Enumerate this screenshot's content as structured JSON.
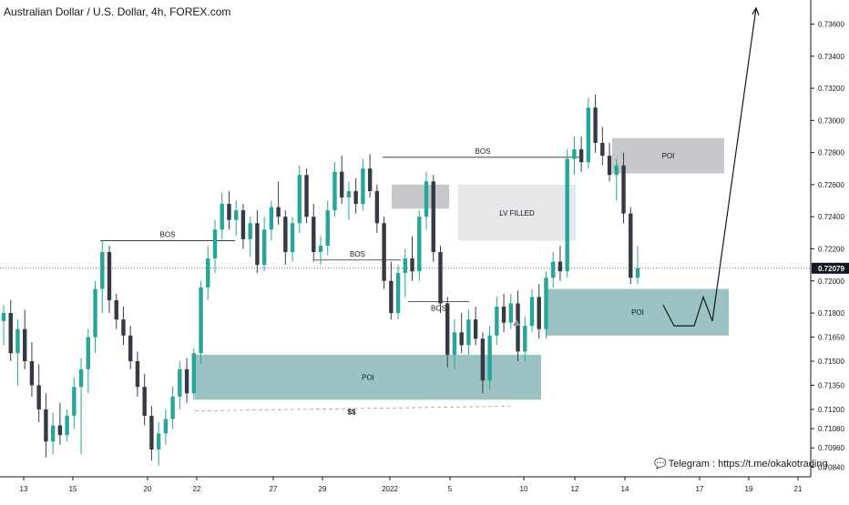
{
  "header": {
    "title": "Australian Dollar / U.S. Dollar, 4h, FOREX.com"
  },
  "footer": {
    "telegram": "Telegram : https://t.me/okakotrading"
  },
  "colors": {
    "up": "#26a69a",
    "down": "#363a45",
    "poi_fill": "#9cc3c3",
    "gray_zone": "#c7c8cb",
    "lv_zone": "#e6e7e9",
    "line": "#000000",
    "price_badge": "#131722"
  },
  "chart_data": {
    "type": "candlestick",
    "symbol": "AUDUSD",
    "timeframe": "4h",
    "ylim": [
      0.7078,
      0.7375
    ],
    "y_ticks": [
      "0.73600",
      "0.73400",
      "0.73200",
      "0.73000",
      "0.72800",
      "0.72600",
      "0.72400",
      "0.72200",
      "0.72000",
      "0.71800",
      "0.71650",
      "0.71500",
      "0.71350",
      "0.71200",
      "0.71080",
      "0.70960",
      "0.70840"
    ],
    "x_ticks": [
      "13",
      "15",
      "20",
      "22",
      "27",
      "29",
      "2022",
      "5",
      "10",
      "12",
      "14",
      "17",
      "19",
      "21"
    ],
    "last_price": "0.72079",
    "annotations": [
      {
        "type": "zone",
        "label": "POI",
        "from": "22",
        "to": "11",
        "top": 0.7154,
        "bottom": 0.7126
      },
      {
        "type": "zone",
        "label": "POI",
        "from": "11",
        "to": "18",
        "top": 0.7195,
        "bottom": 0.7166
      },
      {
        "type": "zone",
        "label": "",
        "from": "2022",
        "to": "5",
        "top": 0.726,
        "bottom": 0.7245
      },
      {
        "type": "zone",
        "label": "LV FILLED",
        "from": "5",
        "to": "12",
        "top": 0.726,
        "bottom": 0.7225
      },
      {
        "type": "zone",
        "label": "POI",
        "from": "13",
        "to": "18",
        "top": 0.7289,
        "bottom": 0.7267
      },
      {
        "type": "level",
        "label": "BOS",
        "price": 0.7225
      },
      {
        "type": "level",
        "label": "BOS",
        "price": 0.7277
      },
      {
        "type": "level",
        "label": "BOS",
        "price": 0.7213
      },
      {
        "type": "level",
        "label": "BOS",
        "price": 0.7187
      },
      {
        "type": "trendline",
        "label": "$$",
        "from_price": 0.7119,
        "to_price": 0.7122
      }
    ],
    "candles": [
      {
        "o": 0.7175,
        "h": 0.7185,
        "l": 0.716,
        "c": 0.718
      },
      {
        "o": 0.718,
        "h": 0.7188,
        "l": 0.715,
        "c": 0.7155
      },
      {
        "o": 0.7155,
        "h": 0.7176,
        "l": 0.7135,
        "c": 0.717
      },
      {
        "o": 0.717,
        "h": 0.7182,
        "l": 0.7145,
        "c": 0.715
      },
      {
        "o": 0.715,
        "h": 0.7162,
        "l": 0.7128,
        "c": 0.7135
      },
      {
        "o": 0.7135,
        "h": 0.7148,
        "l": 0.7112,
        "c": 0.712
      },
      {
        "o": 0.712,
        "h": 0.713,
        "l": 0.709,
        "c": 0.71
      },
      {
        "o": 0.71,
        "h": 0.7118,
        "l": 0.7092,
        "c": 0.711
      },
      {
        "o": 0.711,
        "h": 0.7124,
        "l": 0.7098,
        "c": 0.7104
      },
      {
        "o": 0.7104,
        "h": 0.712,
        "l": 0.71,
        "c": 0.7116
      },
      {
        "o": 0.7116,
        "h": 0.714,
        "l": 0.7108,
        "c": 0.7134
      },
      {
        "o": 0.7134,
        "h": 0.7152,
        "l": 0.7092,
        "c": 0.7145
      },
      {
        "o": 0.7145,
        "h": 0.717,
        "l": 0.713,
        "c": 0.7165
      },
      {
        "o": 0.7165,
        "h": 0.72,
        "l": 0.7155,
        "c": 0.7195
      },
      {
        "o": 0.7195,
        "h": 0.7225,
        "l": 0.718,
        "c": 0.7218
      },
      {
        "o": 0.7218,
        "h": 0.7222,
        "l": 0.718,
        "c": 0.7188
      },
      {
        "o": 0.7188,
        "h": 0.7192,
        "l": 0.717,
        "c": 0.7176
      },
      {
        "o": 0.7176,
        "h": 0.7184,
        "l": 0.716,
        "c": 0.7166
      },
      {
        "o": 0.7166,
        "h": 0.7172,
        "l": 0.7145,
        "c": 0.715
      },
      {
        "o": 0.715,
        "h": 0.7156,
        "l": 0.7128,
        "c": 0.7134
      },
      {
        "o": 0.7134,
        "h": 0.7142,
        "l": 0.711,
        "c": 0.7116
      },
      {
        "o": 0.7116,
        "h": 0.7122,
        "l": 0.7088,
        "c": 0.7095
      },
      {
        "o": 0.7095,
        "h": 0.7112,
        "l": 0.7085,
        "c": 0.7105
      },
      {
        "o": 0.7105,
        "h": 0.712,
        "l": 0.7098,
        "c": 0.7114
      },
      {
        "o": 0.7114,
        "h": 0.7134,
        "l": 0.7108,
        "c": 0.7128
      },
      {
        "o": 0.7128,
        "h": 0.715,
        "l": 0.712,
        "c": 0.7145
      },
      {
        "o": 0.7145,
        "h": 0.7152,
        "l": 0.7124,
        "c": 0.713
      },
      {
        "o": 0.713,
        "h": 0.7158,
        "l": 0.7126,
        "c": 0.7155
      },
      {
        "o": 0.7155,
        "h": 0.72,
        "l": 0.7148,
        "c": 0.7196
      },
      {
        "o": 0.7196,
        "h": 0.7222,
        "l": 0.7188,
        "c": 0.7214
      },
      {
        "o": 0.7214,
        "h": 0.7238,
        "l": 0.7205,
        "c": 0.7232
      },
      {
        "o": 0.7232,
        "h": 0.7255,
        "l": 0.7226,
        "c": 0.7248
      },
      {
        "o": 0.7248,
        "h": 0.7256,
        "l": 0.7232,
        "c": 0.7238
      },
      {
        "o": 0.7238,
        "h": 0.725,
        "l": 0.7228,
        "c": 0.7244
      },
      {
        "o": 0.7244,
        "h": 0.7248,
        "l": 0.722,
        "c": 0.7226
      },
      {
        "o": 0.7226,
        "h": 0.724,
        "l": 0.7215,
        "c": 0.7236
      },
      {
        "o": 0.7236,
        "h": 0.7244,
        "l": 0.7205,
        "c": 0.721
      },
      {
        "o": 0.721,
        "h": 0.724,
        "l": 0.7206,
        "c": 0.7232
      },
      {
        "o": 0.7232,
        "h": 0.725,
        "l": 0.7225,
        "c": 0.7246
      },
      {
        "o": 0.7246,
        "h": 0.7262,
        "l": 0.7235,
        "c": 0.724
      },
      {
        "o": 0.724,
        "h": 0.7244,
        "l": 0.721,
        "c": 0.7218
      },
      {
        "o": 0.7218,
        "h": 0.724,
        "l": 0.7212,
        "c": 0.7236
      },
      {
        "o": 0.7236,
        "h": 0.7272,
        "l": 0.723,
        "c": 0.7266
      },
      {
        "o": 0.7266,
        "h": 0.727,
        "l": 0.7236,
        "c": 0.724
      },
      {
        "o": 0.724,
        "h": 0.7248,
        "l": 0.7212,
        "c": 0.7218
      },
      {
        "o": 0.7218,
        "h": 0.7228,
        "l": 0.721,
        "c": 0.7222
      },
      {
        "o": 0.7222,
        "h": 0.725,
        "l": 0.7216,
        "c": 0.7244
      },
      {
        "o": 0.7244,
        "h": 0.7274,
        "l": 0.724,
        "c": 0.7268
      },
      {
        "o": 0.7268,
        "h": 0.7278,
        "l": 0.7248,
        "c": 0.7252
      },
      {
        "o": 0.7252,
        "h": 0.7262,
        "l": 0.7238,
        "c": 0.7256
      },
      {
        "o": 0.7256,
        "h": 0.7264,
        "l": 0.7242,
        "c": 0.7248
      },
      {
        "o": 0.7248,
        "h": 0.7276,
        "l": 0.7244,
        "c": 0.727
      },
      {
        "o": 0.727,
        "h": 0.7279,
        "l": 0.7252,
        "c": 0.7256
      },
      {
        "o": 0.7256,
        "h": 0.726,
        "l": 0.723,
        "c": 0.7236
      },
      {
        "o": 0.7236,
        "h": 0.724,
        "l": 0.7195,
        "c": 0.72
      },
      {
        "o": 0.72,
        "h": 0.7212,
        "l": 0.7176,
        "c": 0.718
      },
      {
        "o": 0.718,
        "h": 0.721,
        "l": 0.7176,
        "c": 0.7205
      },
      {
        "o": 0.7205,
        "h": 0.722,
        "l": 0.719,
        "c": 0.7214
      },
      {
        "o": 0.7214,
        "h": 0.7228,
        "l": 0.72,
        "c": 0.7206
      },
      {
        "o": 0.7206,
        "h": 0.7244,
        "l": 0.72,
        "c": 0.724
      },
      {
        "o": 0.724,
        "h": 0.7268,
        "l": 0.7232,
        "c": 0.7262
      },
      {
        "o": 0.7262,
        "h": 0.7266,
        "l": 0.7212,
        "c": 0.7218
      },
      {
        "o": 0.7218,
        "h": 0.7222,
        "l": 0.718,
        "c": 0.7186
      },
      {
        "o": 0.7186,
        "h": 0.719,
        "l": 0.7146,
        "c": 0.7154
      },
      {
        "o": 0.7154,
        "h": 0.7176,
        "l": 0.7145,
        "c": 0.7168
      },
      {
        "o": 0.7168,
        "h": 0.718,
        "l": 0.7155,
        "c": 0.716
      },
      {
        "o": 0.716,
        "h": 0.7182,
        "l": 0.7154,
        "c": 0.7176
      },
      {
        "o": 0.7176,
        "h": 0.7184,
        "l": 0.716,
        "c": 0.7164
      },
      {
        "o": 0.7164,
        "h": 0.7168,
        "l": 0.713,
        "c": 0.7138
      },
      {
        "o": 0.7138,
        "h": 0.7172,
        "l": 0.7132,
        "c": 0.7166
      },
      {
        "o": 0.7166,
        "h": 0.719,
        "l": 0.716,
        "c": 0.7184
      },
      {
        "o": 0.7184,
        "h": 0.7192,
        "l": 0.7168,
        "c": 0.7174
      },
      {
        "o": 0.7174,
        "h": 0.7192,
        "l": 0.717,
        "c": 0.7186
      },
      {
        "o": 0.7186,
        "h": 0.7194,
        "l": 0.715,
        "c": 0.7156
      },
      {
        "o": 0.7156,
        "h": 0.7178,
        "l": 0.715,
        "c": 0.7172
      },
      {
        "o": 0.7172,
        "h": 0.7195,
        "l": 0.7168,
        "c": 0.719
      },
      {
        "o": 0.719,
        "h": 0.7198,
        "l": 0.7164,
        "c": 0.717
      },
      {
        "o": 0.717,
        "h": 0.7206,
        "l": 0.7164,
        "c": 0.7202
      },
      {
        "o": 0.7202,
        "h": 0.7218,
        "l": 0.7196,
        "c": 0.7212
      },
      {
        "o": 0.7212,
        "h": 0.7222,
        "l": 0.72,
        "c": 0.7206
      },
      {
        "o": 0.7206,
        "h": 0.7282,
        "l": 0.7202,
        "c": 0.7276
      },
      {
        "o": 0.7276,
        "h": 0.729,
        "l": 0.7266,
        "c": 0.7282
      },
      {
        "o": 0.7282,
        "h": 0.729,
        "l": 0.7268,
        "c": 0.7274
      },
      {
        "o": 0.7274,
        "h": 0.7314,
        "l": 0.727,
        "c": 0.7308
      },
      {
        "o": 0.7308,
        "h": 0.7316,
        "l": 0.728,
        "c": 0.7286
      },
      {
        "o": 0.7286,
        "h": 0.7296,
        "l": 0.7272,
        "c": 0.7278
      },
      {
        "o": 0.7278,
        "h": 0.7286,
        "l": 0.7262,
        "c": 0.7266
      },
      {
        "o": 0.7266,
        "h": 0.7276,
        "l": 0.725,
        "c": 0.7272
      },
      {
        "o": 0.7272,
        "h": 0.728,
        "l": 0.7236,
        "c": 0.7242
      },
      {
        "o": 0.7242,
        "h": 0.7246,
        "l": 0.7198,
        "c": 0.7202
      },
      {
        "o": 0.7202,
        "h": 0.7222,
        "l": 0.7198,
        "c": 0.7208
      }
    ],
    "projection": [
      0.7185,
      0.7172,
      0.7172,
      0.719,
      0.7175,
      0.737
    ]
  }
}
